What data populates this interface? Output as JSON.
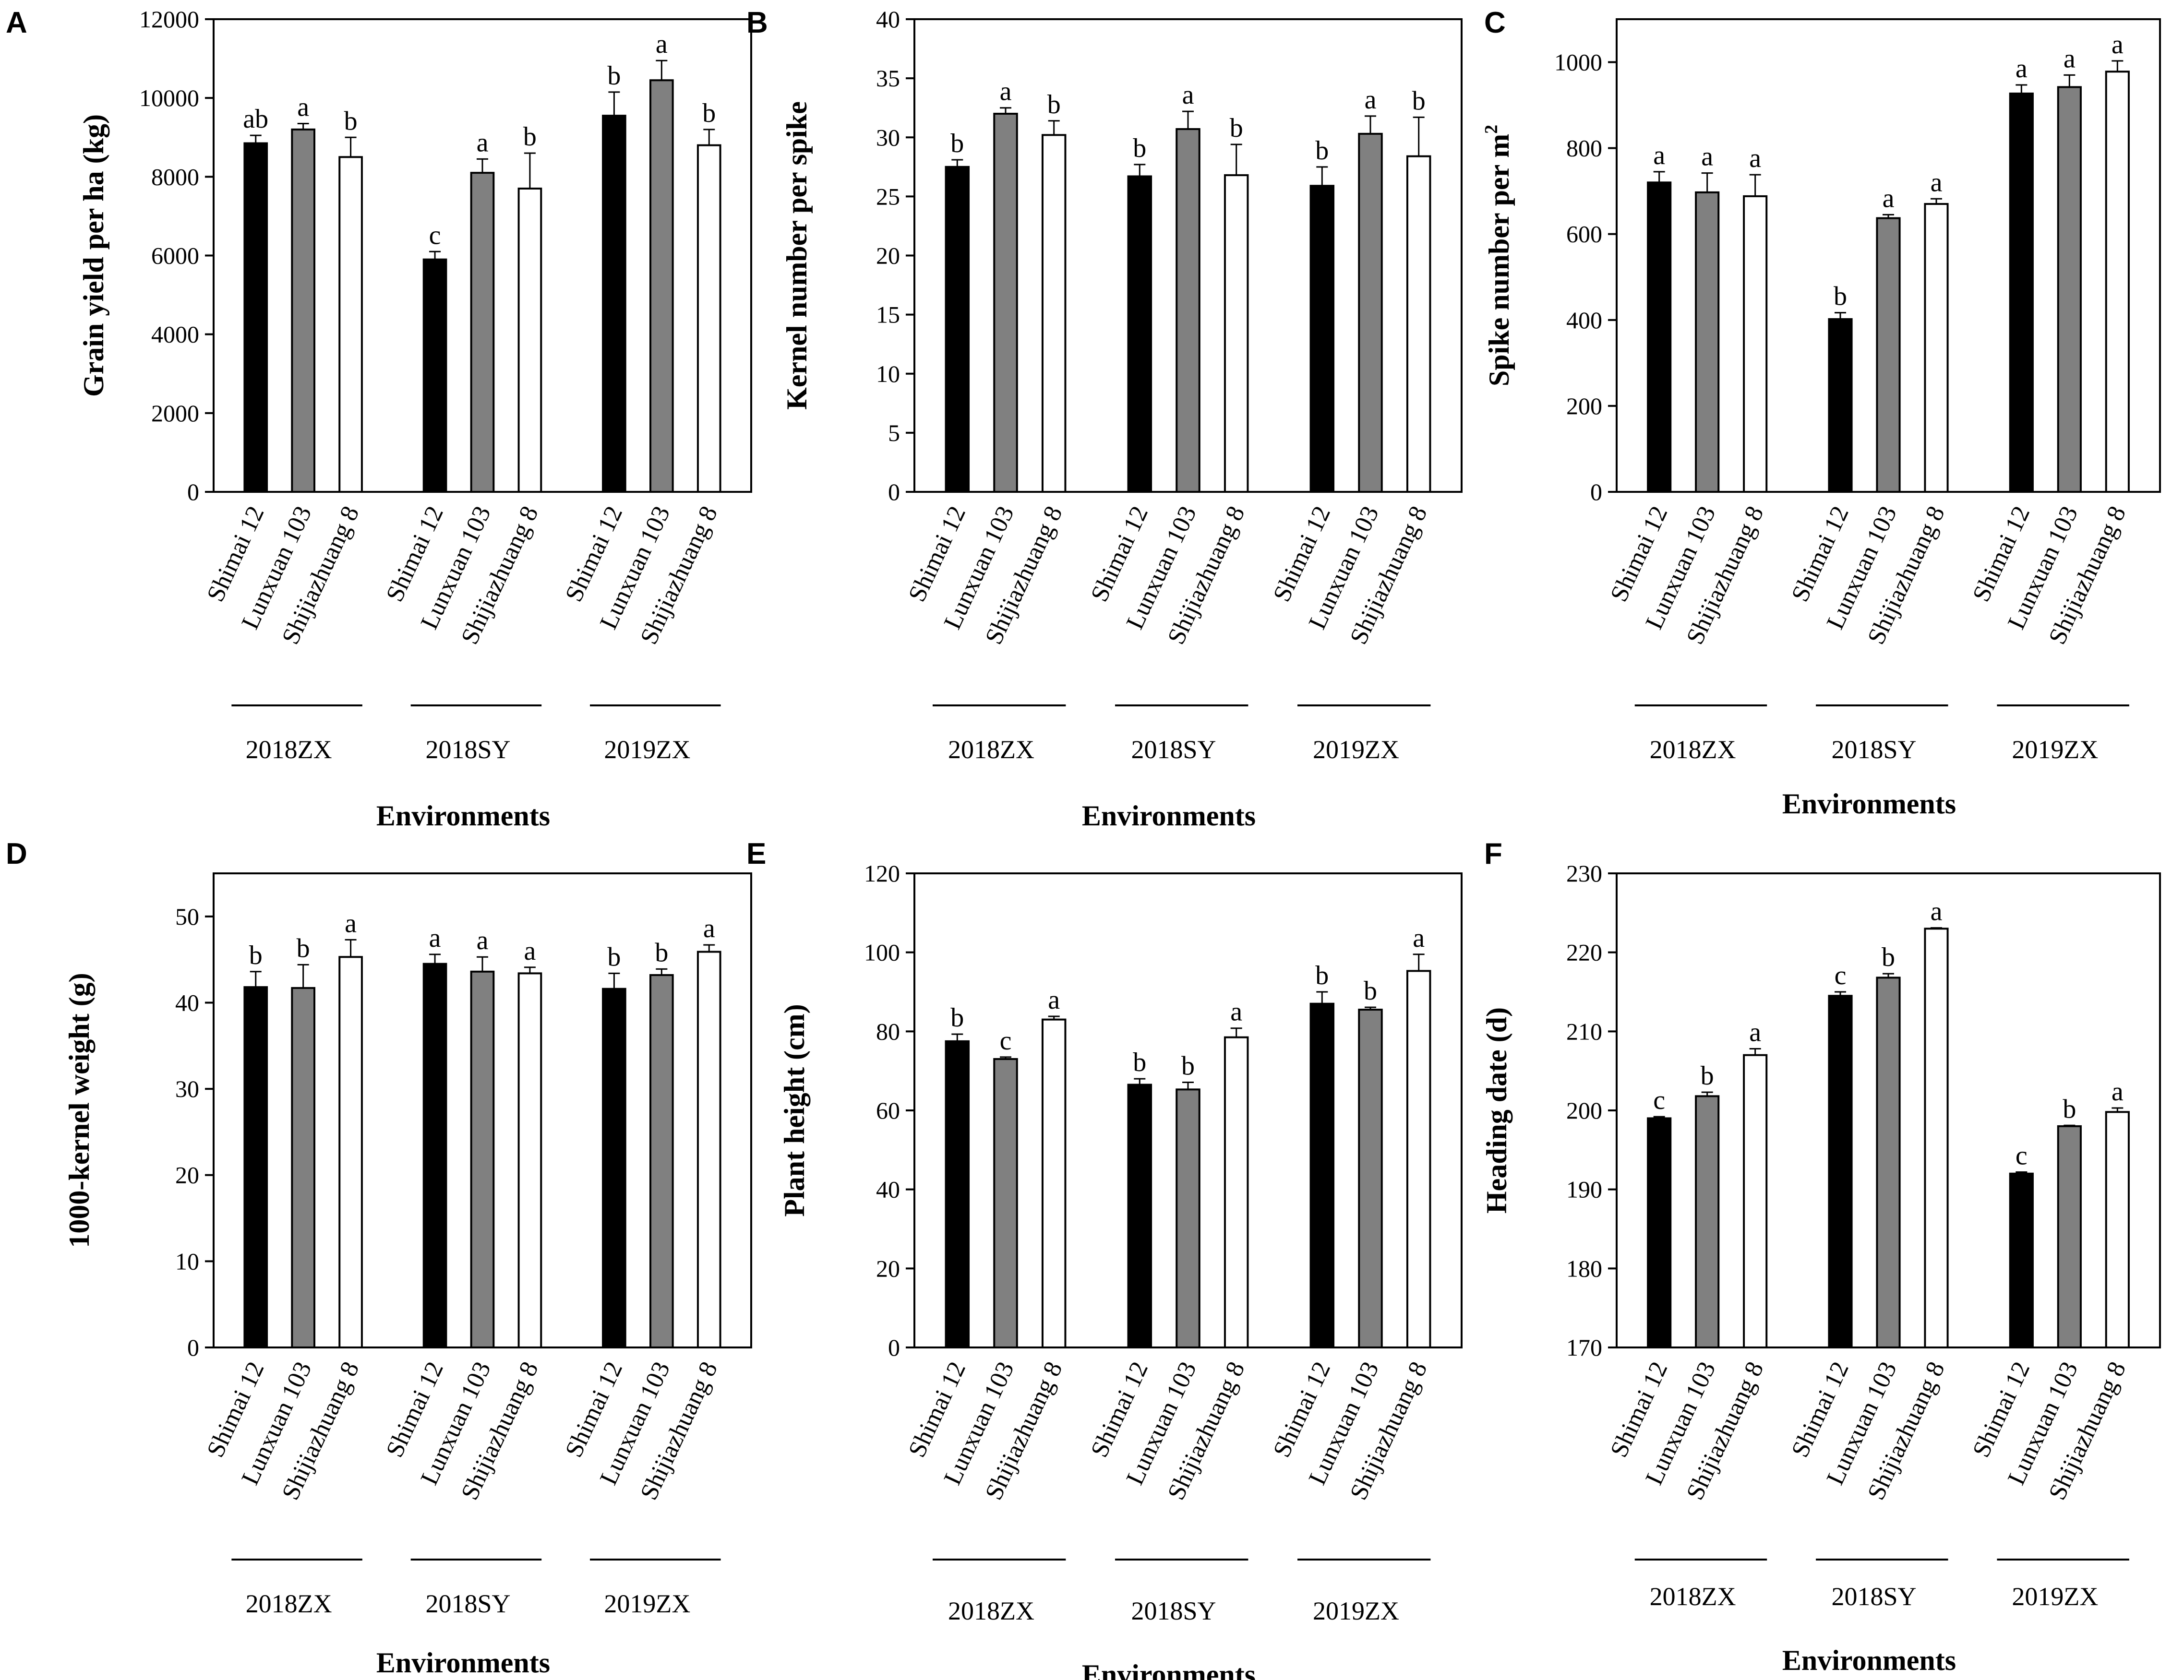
{
  "chart_data": [
    {
      "panel": "A",
      "type": "bar",
      "title": "",
      "ylabel": "Grain yield per ha (kg)",
      "ylabel_sup": "",
      "xlabel": "Environments",
      "ylim": [
        0,
        12000
      ],
      "yticks": [
        "0",
        "2000",
        "4000",
        "6000",
        "8000",
        "10000",
        "12000"
      ],
      "yticks_values": [
        0,
        2000,
        4000,
        6000,
        8000,
        10000,
        12000
      ],
      "environments": [
        "2018ZX",
        "2018SY",
        "2019ZX"
      ],
      "cultivars": [
        "Shimai 12",
        "Lunxuan 103",
        "Shijiazhuang 8"
      ],
      "colors": [
        "#000000",
        "#808080",
        "#ffffff"
      ],
      "values": [
        [
          8850,
          9200,
          8500
        ],
        [
          5900,
          8100,
          7700
        ],
        [
          9550,
          10450,
          8800
        ]
      ],
      "errors": [
        [
          200,
          150,
          500
        ],
        [
          200,
          350,
          900
        ],
        [
          600,
          500,
          400
        ]
      ],
      "letters": [
        [
          "ab",
          "a",
          "b"
        ],
        [
          "c",
          "a",
          "b"
        ],
        [
          "b",
          "a",
          "b"
        ]
      ]
    },
    {
      "panel": "B",
      "type": "bar",
      "title": "",
      "ylabel": "Kernel number per spike",
      "ylabel_sup": "",
      "xlabel": "Environments",
      "ylim": [
        0,
        40
      ],
      "yticks": [
        "0",
        "5",
        "10",
        "15",
        "20",
        "25",
        "30",
        "35",
        "40"
      ],
      "yticks_values": [
        0,
        5,
        10,
        15,
        20,
        25,
        30,
        35,
        40
      ],
      "environments": [
        "2018ZX",
        "2018SY",
        "2019ZX"
      ],
      "cultivars": [
        "Shimai 12",
        "Lunxuan 103",
        "Shijiazhuang 8"
      ],
      "colors": [
        "#000000",
        "#808080",
        "#ffffff"
      ],
      "values": [
        [
          27.5,
          32.0,
          30.2
        ],
        [
          26.7,
          30.7,
          26.8
        ],
        [
          25.9,
          30.3,
          28.4
        ]
      ],
      "errors": [
        [
          0.6,
          0.5,
          1.2
        ],
        [
          1.0,
          1.5,
          2.6
        ],
        [
          1.6,
          1.5,
          3.3
        ]
      ],
      "letters": [
        [
          "b",
          "a",
          "b"
        ],
        [
          "b",
          "a",
          "b"
        ],
        [
          "b",
          "a",
          "b"
        ]
      ]
    },
    {
      "panel": "C",
      "type": "bar",
      "title": "",
      "ylabel": "Spike number per m",
      "ylabel_sup": "2",
      "xlabel": "Environments",
      "ylim": [
        0,
        1100
      ],
      "yticks": [
        "0",
        "200",
        "400",
        "600",
        "800",
        "1000"
      ],
      "yticks_values": [
        0,
        200,
        400,
        600,
        800,
        1000
      ],
      "environments": [
        "2018ZX",
        "2018SY",
        "2019ZX"
      ],
      "cultivars": [
        "Shimai 12",
        "Lunxuan 103",
        "Shijiazhuang 8"
      ],
      "colors": [
        "#000000",
        "#808080",
        "#ffffff"
      ],
      "values": [
        [
          720,
          697,
          688
        ],
        [
          402,
          637,
          670
        ],
        [
          927,
          942,
          978
        ]
      ],
      "errors": [
        [
          25,
          45,
          50
        ],
        [
          15,
          8,
          12
        ],
        [
          20,
          28,
          25
        ]
      ],
      "letters": [
        [
          "a",
          "a",
          "a"
        ],
        [
          "b",
          "a",
          "a"
        ],
        [
          "a",
          "a",
          "a"
        ]
      ]
    },
    {
      "panel": "D",
      "type": "bar",
      "title": "",
      "ylabel": "1000-kernel weight (g)",
      "ylabel_sup": "",
      "xlabel": "Environments",
      "ylim": [
        0,
        55
      ],
      "yticks": [
        "0",
        "10",
        "20",
        "30",
        "40",
        "50"
      ],
      "yticks_values": [
        0,
        10,
        20,
        30,
        40,
        50
      ],
      "environments": [
        "2018ZX",
        "2018SY",
        "2019ZX"
      ],
      "cultivars": [
        "Shimai 12",
        "Lunxuan 103",
        "Shijiazhuang 8"
      ],
      "colors": [
        "#000000",
        "#808080",
        "#ffffff"
      ],
      "values": [
        [
          41.8,
          41.7,
          45.3
        ],
        [
          44.5,
          43.6,
          43.4
        ],
        [
          41.6,
          43.2,
          45.9
        ]
      ],
      "errors": [
        [
          1.8,
          2.7,
          2.0
        ],
        [
          1.1,
          1.7,
          0.7
        ],
        [
          1.8,
          0.7,
          0.8
        ]
      ],
      "letters": [
        [
          "b",
          "b",
          "a"
        ],
        [
          "a",
          "a",
          "a"
        ],
        [
          "b",
          "b",
          "a"
        ]
      ]
    },
    {
      "panel": "E",
      "type": "bar",
      "title": "",
      "ylabel": "Plant height (cm)",
      "ylabel_sup": "",
      "xlabel": "Environments",
      "ylim": [
        0,
        120
      ],
      "yticks": [
        "0",
        "20",
        "40",
        "60",
        "80",
        "100",
        "120"
      ],
      "yticks_values": [
        0,
        20,
        40,
        60,
        80,
        100,
        120
      ],
      "environments": [
        "2018ZX",
        "2018SY",
        "2019ZX"
      ],
      "cultivars": [
        "Shimai 12",
        "Lunxuan 103",
        "Shijiazhuang 8"
      ],
      "colors": [
        "#000000",
        "#808080",
        "#ffffff"
      ],
      "values": [
        [
          77.5,
          73.0,
          83.0
        ],
        [
          66.5,
          65.3,
          78.5
        ],
        [
          87.0,
          85.5,
          95.3
        ]
      ],
      "errors": [
        [
          1.8,
          0.5,
          0.8
        ],
        [
          1.5,
          1.8,
          2.3
        ],
        [
          3.0,
          0.6,
          4.2
        ]
      ],
      "letters": [
        [
          "b",
          "c",
          "a"
        ],
        [
          "b",
          "b",
          "a"
        ],
        [
          "b",
          "b",
          "a"
        ]
      ]
    },
    {
      "panel": "F",
      "type": "bar",
      "title": "",
      "ylabel": "Heading date (d)",
      "ylabel_sup": "",
      "xlabel": "Environments",
      "ylim": [
        170,
        230
      ],
      "yticks": [
        "170",
        "180",
        "190",
        "200",
        "210",
        "220",
        "230"
      ],
      "yticks_values": [
        170,
        180,
        190,
        200,
        210,
        220,
        230
      ],
      "environments": [
        "2018ZX",
        "2018SY",
        "2019ZX"
      ],
      "cultivars": [
        "Shimai 12",
        "Lunxuan 103",
        "Shijiazhuang 8"
      ],
      "colors": [
        "#000000",
        "#808080",
        "#ffffff"
      ],
      "values": [
        [
          199.0,
          201.8,
          207.0
        ],
        [
          214.5,
          216.8,
          223.0
        ],
        [
          192.0,
          198.0,
          199.8
        ]
      ],
      "errors": [
        [
          0.2,
          0.5,
          0.8
        ],
        [
          0.5,
          0.5,
          0.1
        ],
        [
          0.2,
          0.1,
          0.5
        ]
      ],
      "letters": [
        [
          "c",
          "b",
          "a"
        ],
        [
          "c",
          "b",
          "a"
        ],
        [
          "c",
          "b",
          "a"
        ]
      ]
    }
  ]
}
